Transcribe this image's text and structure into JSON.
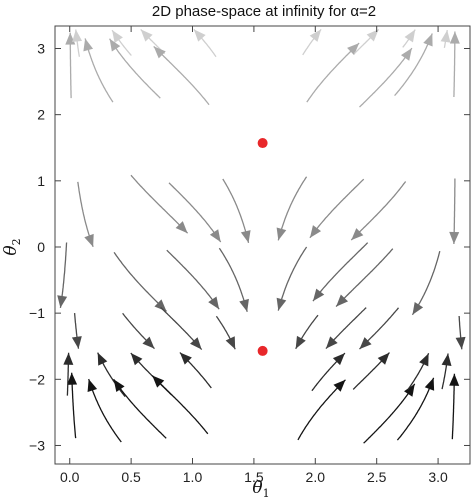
{
  "chart_data": {
    "type": "stream",
    "title": "2D phase-space at infinity for α=2",
    "xlabel": {
      "symbol": "θ",
      "subscript": "1"
    },
    "ylabel": {
      "symbol": "θ",
      "subscript": "2"
    },
    "xlim": [
      -0.12,
      3.26
    ],
    "ylim": [
      -3.28,
      3.34
    ],
    "xticks": [
      0.0,
      0.5,
      1.0,
      1.5,
      2.0,
      2.5,
      3.0
    ],
    "xtick_labels": [
      "0.0",
      "0.5",
      "1.0",
      "1.5",
      "2.0",
      "2.5",
      "3.0"
    ],
    "yticks": [
      -3,
      -2,
      -1,
      0,
      1,
      2,
      3
    ],
    "ytick_labels": [
      "−3",
      "−2",
      "−1",
      "0",
      "1",
      "2",
      "3"
    ],
    "grid": false,
    "critical_points": [
      {
        "x": 1.571,
        "y": 1.571,
        "color": "#e8272a"
      },
      {
        "x": 1.571,
        "y": -1.571,
        "color": "#e8272a"
      }
    ],
    "stream_color_range": [
      "#111111",
      "#e6e6e6"
    ]
  }
}
